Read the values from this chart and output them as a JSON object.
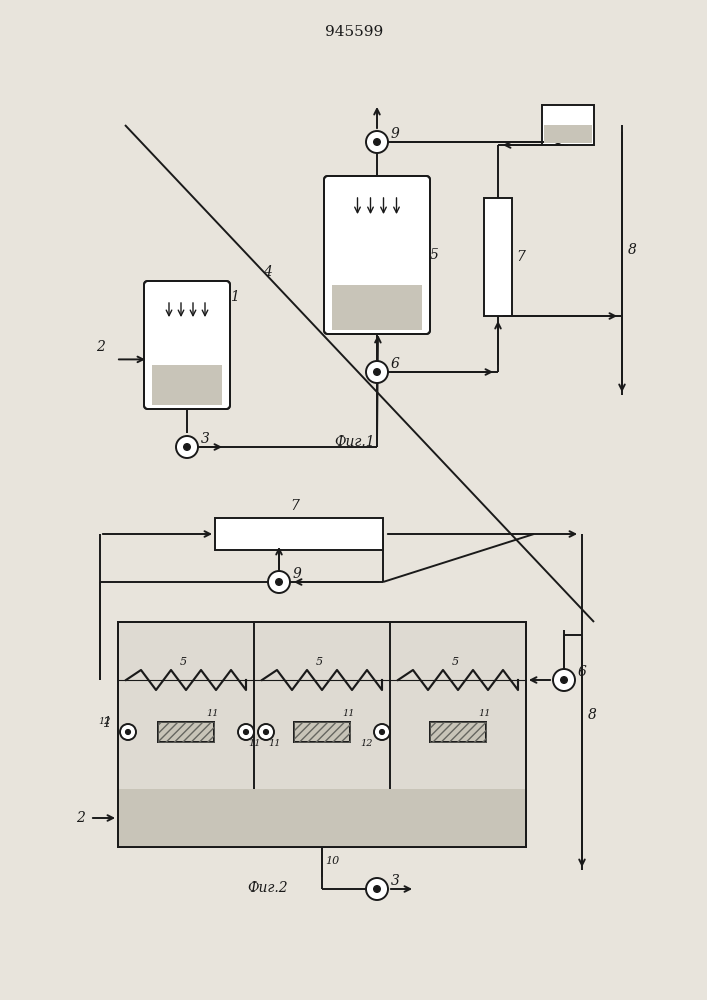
{
  "title": "945599",
  "fig1_label": "Фиг.1",
  "fig2_label": "Фиг.2",
  "bg_color": "#e8e4dc",
  "line_color": "#1a1a1a",
  "water_color": "#c8c4b8",
  "fill_light": "#d8d4cc"
}
